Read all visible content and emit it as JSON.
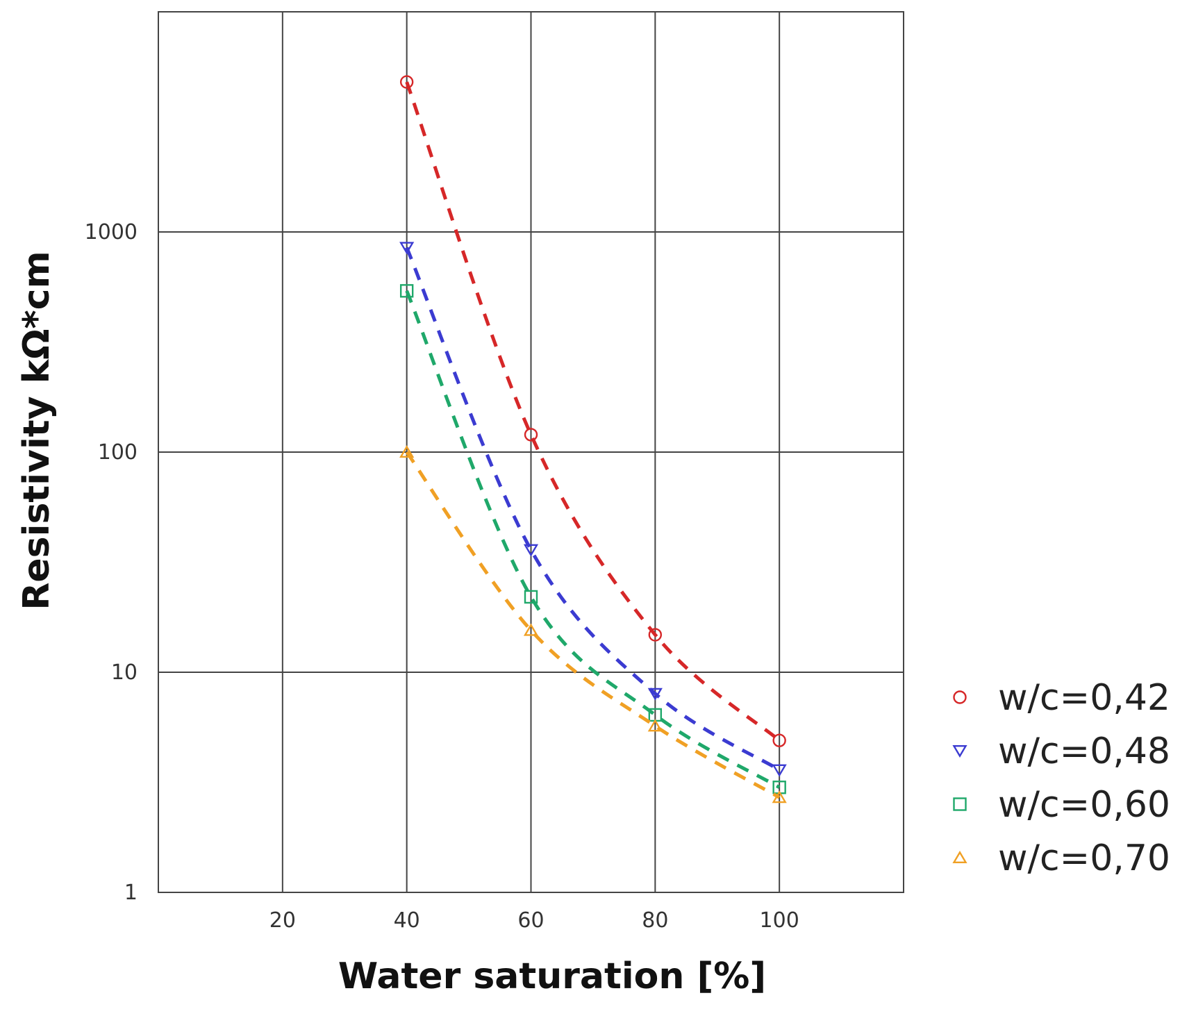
{
  "chart_data": {
    "type": "line",
    "title": "",
    "xlabel": "Water saturation [%]",
    "ylabel": "Resistivity kΩ*cm",
    "yscale": "log",
    "xlim": [
      0,
      120
    ],
    "ylim": [
      1,
      10000
    ],
    "grid": true,
    "x_ticks": [
      20,
      40,
      60,
      80,
      100
    ],
    "x_tick_labels": [
      "20",
      "40",
      "60",
      "80",
      "100"
    ],
    "y_ticks": [
      1,
      10,
      100,
      1000
    ],
    "y_tick_labels": [
      "1",
      "10",
      "100",
      "1000"
    ],
    "legend_position": "right",
    "x": [
      40,
      60,
      80,
      100
    ],
    "series": [
      {
        "name": "w/c=0,42",
        "marker": "circle",
        "color": "#d62728",
        "values": [
          4800,
          120,
          14.8,
          4.9
        ]
      },
      {
        "name": "w/c=0,48",
        "marker": "triangle-down",
        "color": "#3b3bd1",
        "values": [
          850,
          36,
          8.0,
          3.6
        ]
      },
      {
        "name": "w/c=0,60",
        "marker": "square",
        "color": "#1fa86a",
        "values": [
          540,
          22,
          6.4,
          3.0
        ]
      },
      {
        "name": "w/c=0,70",
        "marker": "triangle-up",
        "color": "#f0a024",
        "values": [
          100,
          15.5,
          5.7,
          2.7
        ]
      }
    ]
  }
}
